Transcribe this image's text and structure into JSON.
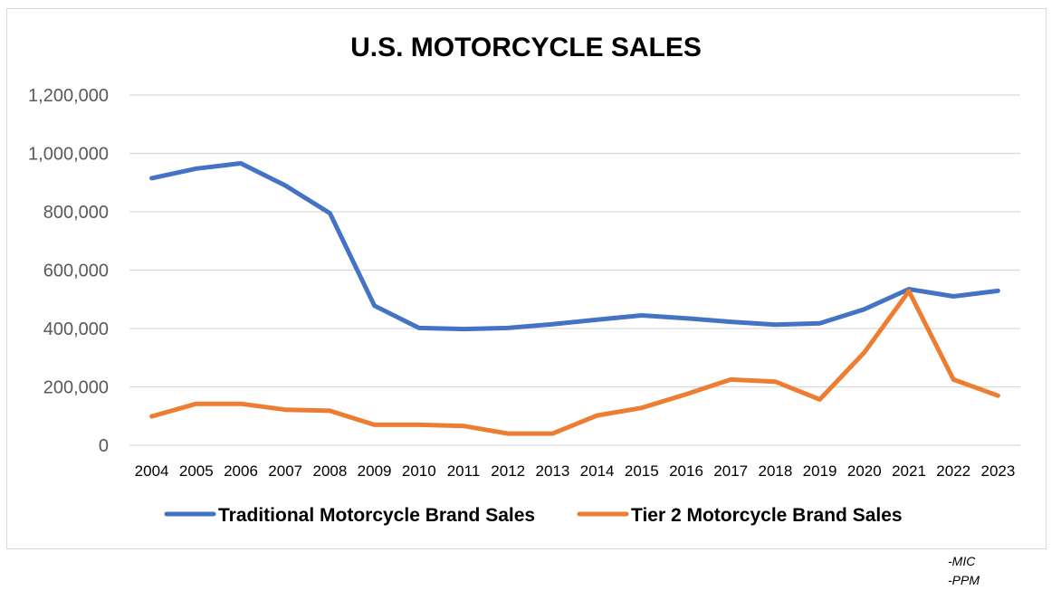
{
  "chart_data": {
    "type": "line",
    "title": "U.S. MOTORCYCLE SALES",
    "xlabel": "",
    "ylabel": "",
    "ylim": [
      0,
      1200000
    ],
    "yticks": [
      0,
      200000,
      400000,
      600000,
      800000,
      1000000,
      1200000
    ],
    "ytick_labels": [
      "0",
      "200,000",
      "400,000",
      "600,000",
      "800,000",
      "1,000,000",
      "1,200,000"
    ],
    "grid": true,
    "legend_position": "bottom",
    "categories": [
      "2004",
      "2005",
      "2006",
      "2007",
      "2008",
      "2009",
      "2010",
      "2011",
      "2012",
      "2013",
      "2014",
      "2015",
      "2016",
      "2017",
      "2018",
      "2019",
      "2020",
      "2021",
      "2022",
      "2023"
    ],
    "series": [
      {
        "name": "Traditional Motorcycle Brand Sales",
        "color": "#4472c4",
        "values": [
          915000,
          948000,
          966000,
          890000,
          795000,
          478000,
          402000,
          398000,
          402000,
          415000,
          430000,
          445000,
          435000,
          423000,
          413000,
          418000,
          466000,
          535000,
          510000,
          529000
        ]
      },
      {
        "name": "Tier 2 Motorcycle Brand Sales",
        "color": "#ed7d31",
        "values": [
          99000,
          142000,
          142000,
          122000,
          118000,
          70000,
          70000,
          66000,
          40000,
          40000,
          102000,
          128000,
          175000,
          225000,
          218000,
          157000,
          318000,
          528000,
          225000,
          170000
        ]
      }
    ]
  },
  "source_notes": [
    "-MIC",
    "-PPM"
  ]
}
